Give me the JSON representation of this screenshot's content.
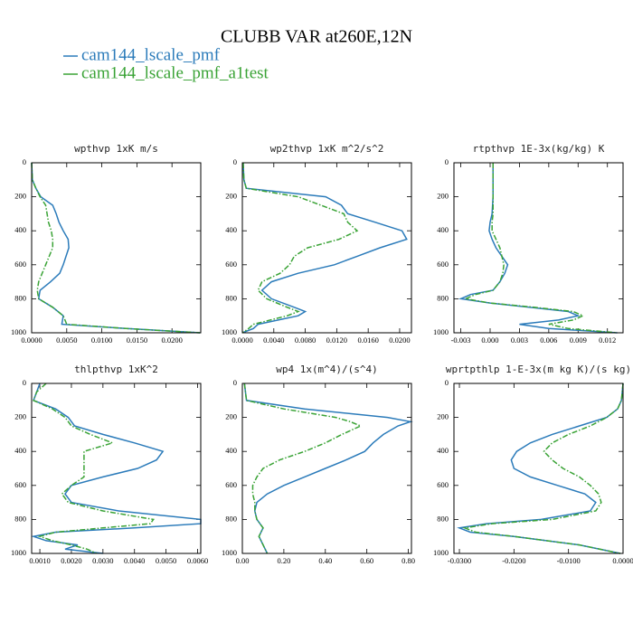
{
  "title": "CLUBB VAR at260E,12N",
  "chart_data": [
    {
      "type": "line",
      "title": "wpthvp  1xK m/s",
      "y": [
        0,
        100,
        150,
        200,
        250,
        300,
        350,
        400,
        450,
        500,
        550,
        600,
        650,
        700,
        750,
        800,
        850,
        900,
        950,
        975,
        1000
      ],
      "xlim": [
        0,
        0.0241
      ],
      "ylim": [
        1000,
        0
      ],
      "xticks": [
        {
          "value": 0,
          "label": "0.0000"
        },
        {
          "value": 0.005,
          "label": "0.0050"
        },
        {
          "value": 0.01,
          "label": "0.0100"
        },
        {
          "value": 0.015,
          "label": "0.0150"
        },
        {
          "value": 0.02,
          "label": "0.0200"
        }
      ],
      "yticks": [
        0,
        200,
        400,
        600,
        800,
        1000
      ],
      "series": [
        {
          "name": "cam144_lscale_pmf",
          "color": "#2b7bba",
          "linestyle": "solid",
          "values": [
            0,
            0.0001,
            0.0006,
            0.0013,
            0.003,
            0.0035,
            0.0039,
            0.0045,
            0.0052,
            0.0053,
            0.0049,
            0.0045,
            0.004,
            0.0027,
            0.0012,
            0.001,
            0.003,
            0.0045,
            0.0043,
            0.0135,
            0.024
          ]
        },
        {
          "name": "cam144_lscale_pmf_a1test",
          "color": "#3aa336",
          "linestyle": "dashdot",
          "values": [
            0,
            0.0001,
            0.0006,
            0.0012,
            0.002,
            0.0022,
            0.0024,
            0.0028,
            0.003,
            0.003,
            0.0025,
            0.002,
            0.0015,
            0.001,
            0.0008,
            0.001,
            0.003,
            0.0045,
            0.005,
            0.0135,
            0.024
          ]
        }
      ]
    },
    {
      "type": "line",
      "title": "wp2thvp  1xK m^2/s^2",
      "y": [
        0,
        100,
        150,
        200,
        250,
        300,
        350,
        400,
        450,
        500,
        550,
        600,
        650,
        700,
        750,
        800,
        850,
        875,
        900,
        950,
        975,
        1000
      ],
      "xlim": [
        0,
        0.0215
      ],
      "ylim": [
        1000,
        0
      ],
      "xticks": [
        {
          "value": 0,
          "label": "0.0000"
        },
        {
          "value": 0.004,
          "label": "0.0040"
        },
        {
          "value": 0.008,
          "label": "0.0080"
        },
        {
          "value": 0.012,
          "label": "0.0120"
        },
        {
          "value": 0.016,
          "label": "0.0160"
        },
        {
          "value": 0.02,
          "label": "0.0200"
        }
      ],
      "yticks": [
        0,
        200,
        400,
        600,
        800,
        1000
      ],
      "series": [
        {
          "name": "cam144_lscale_pmf",
          "color": "#2b7bba",
          "linestyle": "solid",
          "values": [
            0.0001,
            0.0002,
            0.0005,
            0.0106,
            0.0126,
            0.0134,
            0.0169,
            0.0203,
            0.0209,
            0.0175,
            0.0146,
            0.0117,
            0.0071,
            0.0037,
            0.0025,
            0.0037,
            0.0066,
            0.008,
            0.0071,
            0.002,
            0.0014,
            0
          ]
        },
        {
          "name": "cam144_lscale_pmf_a1test",
          "color": "#3aa336",
          "linestyle": "dashdot",
          "values": [
            0.0001,
            0.0002,
            0.0005,
            0.0071,
            0.01,
            0.0129,
            0.0134,
            0.0146,
            0.0123,
            0.0083,
            0.0066,
            0.006,
            0.0048,
            0.0025,
            0.002,
            0.0031,
            0.0057,
            0.0071,
            0.0057,
            0.0014,
            0.0008,
            0
          ]
        }
      ]
    },
    {
      "type": "line",
      "title": "rtpthvp   1E-3x(kg/kg) K",
      "y": [
        0,
        100,
        200,
        300,
        350,
        400,
        450,
        500,
        550,
        600,
        650,
        700,
        750,
        775,
        800,
        825,
        850,
        875,
        900,
        925,
        950,
        975,
        1000
      ],
      "xlim": [
        -0.0037,
        0.0136
      ],
      "ylim": [
        1000,
        0
      ],
      "xticks": [
        -0.003,
        {
          "value": 0,
          "label": "0.000"
        },
        0.003,
        0.006,
        0.009,
        0.012
      ],
      "yticks": [
        0,
        200,
        400,
        600,
        800,
        1000
      ],
      "series": [
        {
          "name": "cam144_lscale_pmf",
          "color": "#2b7bba",
          "linestyle": "solid",
          "values": [
            0.0003,
            0.0003,
            0.0003,
            0.0002,
            0,
            -0.0001,
            0.0002,
            0.0006,
            0.0012,
            0.0018,
            0.0015,
            0.001,
            0.0003,
            -0.002,
            -0.003,
            0,
            0.004,
            0.008,
            0.009,
            0.007,
            0.003,
            0.006,
            0.013
          ]
        },
        {
          "name": "cam144_lscale_pmf_a1test",
          "color": "#3aa336",
          "linestyle": "dashdot",
          "values": [
            0.0003,
            0.0003,
            0.0003,
            0.0003,
            0.0002,
            0.0002,
            0.0006,
            0.001,
            0.0012,
            0.0014,
            0.0013,
            0.001,
            0.0003,
            -0.0015,
            -0.0025,
            0,
            0.0045,
            0.0085,
            0.0095,
            0.0085,
            0.006,
            0.008,
            0.013
          ]
        }
      ]
    },
    {
      "type": "line",
      "title": "thlpthvp   1xK^2",
      "y": [
        0,
        50,
        100,
        150,
        200,
        250,
        300,
        350,
        400,
        450,
        500,
        550,
        600,
        650,
        700,
        750,
        800,
        825,
        850,
        875,
        900,
        925,
        950,
        975,
        1000
      ],
      "xlim": [
        0.00074,
        0.0061
      ],
      "ylim": [
        1000,
        0
      ],
      "xticks": [
        {
          "value": 0.001,
          "label": "0.0010"
        },
        {
          "value": 0.002,
          "label": "0.0020"
        },
        {
          "value": 0.003,
          "label": "0.0030"
        },
        {
          "value": 0.004,
          "label": "0.0040"
        },
        {
          "value": 0.005,
          "label": "0.0050"
        },
        {
          "value": 0.006,
          "label": "0.0060"
        }
      ],
      "yticks": [
        0,
        200,
        400,
        600,
        800,
        1000
      ],
      "series": [
        {
          "name": "cam144_lscale_pmf",
          "color": "#2b7bba",
          "linestyle": "solid",
          "values": [
            0.001,
            0.0009,
            0.0008,
            0.0015,
            0.0019,
            0.0021,
            0.003,
            0.004,
            0.0049,
            0.0047,
            0.0041,
            0.003,
            0.002,
            0.0018,
            0.002,
            0.0035,
            0.0061,
            0.0061,
            0.004,
            0.0015,
            0.0008,
            0.0012,
            0.0022,
            0.0018,
            0.003
          ]
        },
        {
          "name": "cam144_lscale_pmf_a1test",
          "color": "#3aa336",
          "linestyle": "dashdot",
          "values": [
            0.0012,
            0.0009,
            0.0008,
            0.0014,
            0.0018,
            0.002,
            0.0026,
            0.0033,
            0.0024,
            0.0024,
            0.0024,
            0.0024,
            0.002,
            0.0017,
            0.0019,
            0.003,
            0.0046,
            0.0045,
            0.003,
            0.0015,
            0.001,
            0.0014,
            0.002,
            0.0025,
            0.0028
          ]
        }
      ]
    },
    {
      "type": "line",
      "title": "wp4   1x(m^4)/(s^4)",
      "y": [
        0,
        100,
        150,
        200,
        225,
        250,
        300,
        350,
        400,
        450,
        500,
        550,
        600,
        650,
        700,
        750,
        800,
        850,
        900,
        950,
        1000
      ],
      "xlim": [
        0,
        0.815
      ],
      "ylim": [
        1000,
        0
      ],
      "xticks": [
        {
          "value": 0,
          "label": "0.00"
        },
        {
          "value": 0.2,
          "label": "0.20"
        },
        {
          "value": 0.4,
          "label": "0.40"
        },
        {
          "value": 0.6,
          "label": "0.60"
        },
        {
          "value": 0.8,
          "label": "0.80"
        }
      ],
      "yticks": [
        0,
        200,
        400,
        600,
        800,
        1000
      ],
      "series": [
        {
          "name": "cam144_lscale_pmf",
          "color": "#2b7bba",
          "linestyle": "solid",
          "values": [
            0.01,
            0.02,
            0.3,
            0.7,
            0.81,
            0.75,
            0.68,
            0.63,
            0.59,
            0.5,
            0.4,
            0.3,
            0.2,
            0.12,
            0.07,
            0.06,
            0.07,
            0.1,
            0.08,
            0.1,
            0.12
          ]
        },
        {
          "name": "cam144_lscale_pmf_a1test",
          "color": "#3aa336",
          "linestyle": "dashdot",
          "values": [
            0.01,
            0.02,
            0.2,
            0.45,
            0.52,
            0.57,
            0.48,
            0.4,
            0.3,
            0.18,
            0.1,
            0.07,
            0.05,
            0.05,
            0.06,
            0.06,
            0.07,
            0.1,
            0.08,
            0.1,
            0.12
          ]
        }
      ]
    },
    {
      "type": "line",
      "title": "wprtpthlp   1-E-3x(m kg K)/(s kg)",
      "y": [
        0,
        100,
        150,
        200,
        250,
        300,
        350,
        400,
        450,
        500,
        550,
        600,
        650,
        700,
        750,
        800,
        825,
        850,
        875,
        900,
        950,
        1000
      ],
      "xlim": [
        -0.031,
        0
      ],
      "ylim": [
        1000,
        0
      ],
      "xticks": [
        {
          "value": -0.03,
          "label": "-0.0300"
        },
        {
          "value": -0.02,
          "label": "-0.0200"
        },
        {
          "value": -0.01,
          "label": "-0.0100"
        },
        {
          "value": 0,
          "label": "0.0000"
        }
      ],
      "yticks": [
        0,
        200,
        400,
        600,
        800,
        1000
      ],
      "series": [
        {
          "name": "cam144_lscale_pmf",
          "color": "#2b7bba",
          "linestyle": "solid",
          "values": [
            0,
            -0.0003,
            -0.001,
            -0.003,
            -0.008,
            -0.013,
            -0.017,
            -0.0195,
            -0.0205,
            -0.02,
            -0.017,
            -0.012,
            -0.007,
            -0.005,
            -0.006,
            -0.015,
            -0.025,
            -0.03,
            -0.028,
            -0.02,
            -0.008,
            -0.0005
          ]
        },
        {
          "name": "cam144_lscale_pmf_a1test",
          "color": "#3aa336",
          "linestyle": "dashdot",
          "values": [
            0,
            -0.0003,
            -0.001,
            -0.003,
            -0.006,
            -0.01,
            -0.013,
            -0.0145,
            -0.013,
            -0.011,
            -0.008,
            -0.006,
            -0.0045,
            -0.004,
            -0.005,
            -0.013,
            -0.024,
            -0.029,
            -0.027,
            -0.02,
            -0.008,
            -0.0005
          ]
        }
      ]
    }
  ]
}
